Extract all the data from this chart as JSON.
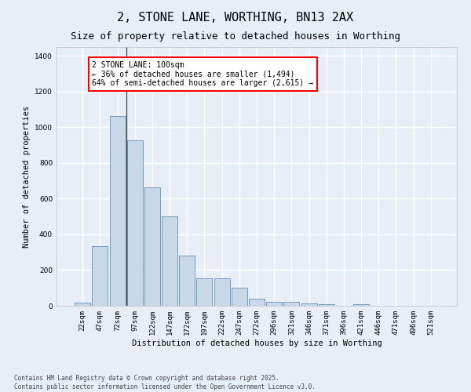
{
  "title": "2, STONE LANE, WORTHING, BN13 2AX",
  "subtitle": "Size of property relative to detached houses in Worthing",
  "xlabel": "Distribution of detached houses by size in Worthing",
  "ylabel": "Number of detached properties",
  "bar_color": "#c8d8e8",
  "bar_edge_color": "#6090b0",
  "background_color": "#e8eef8",
  "grid_color": "#ffffff",
  "categories": [
    "22sqm",
    "47sqm",
    "72sqm",
    "97sqm",
    "122sqm",
    "147sqm",
    "172sqm",
    "197sqm",
    "222sqm",
    "247sqm",
    "272sqm",
    "296sqm",
    "321sqm",
    "346sqm",
    "371sqm",
    "396sqm",
    "421sqm",
    "446sqm",
    "471sqm",
    "496sqm",
    "521sqm"
  ],
  "values": [
    18,
    335,
    1065,
    925,
    665,
    500,
    280,
    155,
    155,
    100,
    40,
    22,
    20,
    15,
    10,
    0,
    8,
    0,
    0,
    0,
    0
  ],
  "ylim": [
    0,
    1450
  ],
  "yticks": [
    0,
    200,
    400,
    600,
    800,
    1000,
    1200,
    1400
  ],
  "annotation_text": "2 STONE LANE: 100sqm\n← 36% of detached houses are smaller (1,494)\n64% of semi-detached houses are larger (2,615) →",
  "footer": "Contains HM Land Registry data © Crown copyright and database right 2025.\nContains public sector information licensed under the Open Government Licence v3.0.",
  "title_fontsize": 11,
  "subtitle_fontsize": 9,
  "label_fontsize": 7.5,
  "tick_fontsize": 6.5,
  "annotation_fontsize": 7
}
